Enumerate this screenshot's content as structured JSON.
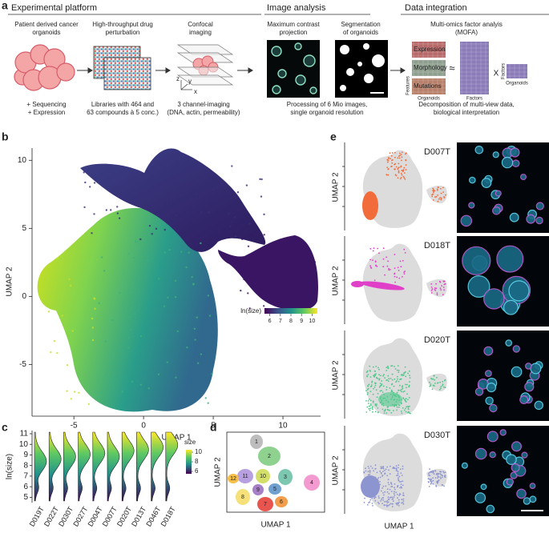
{
  "panel_a": {
    "label": "a",
    "sections": [
      "Experimental platform",
      "Image analysis",
      "Data integration"
    ],
    "steps": [
      [
        "Patient derived cancer",
        "organoids"
      ],
      [
        "High-throughput drug",
        "perturbation"
      ],
      [
        "Confocal",
        "imaging"
      ],
      [
        "Maximum contrast",
        "projection"
      ],
      [
        "Segmentation",
        "of organoids"
      ],
      [
        "Multi-omics factor analyis",
        "(MOFA)"
      ]
    ],
    "captions": [
      [
        "+ Sequencing",
        "+ Expression"
      ],
      [
        "Libraries with 464 and",
        "63 compounds à 5 conc.)"
      ],
      [
        "3 channel-imaging",
        "(DNA, actin, permeability)"
      ],
      [
        "Processing of 6 Mio images,",
        "single organoid resolution"
      ],
      [
        "Decomposition of multi-view data,",
        "biological interpretation"
      ]
    ],
    "axes": [
      "z",
      "y",
      "x"
    ],
    "mofa": {
      "views": [
        "Expression",
        "Morphology",
        "Mutations"
      ],
      "features": "Features",
      "organoids": "Organoids",
      "factors": "Factors",
      "approx": "≈",
      "times": "X"
    }
  },
  "panel_b": {
    "label": "b",
    "x_label": "UMAP 1",
    "y_label": "UMAP 2",
    "xlim": [
      -8,
      12.7
    ],
    "ylim": [
      -8.8,
      10.9
    ],
    "xticks": [
      -5,
      0,
      5,
      10
    ],
    "yticks": [
      -5,
      0,
      5,
      10
    ],
    "colorbar": {
      "title": "ln(size)",
      "lim": [
        5.5,
        10.5
      ],
      "ticks": [
        6,
        7,
        8,
        9,
        10
      ]
    }
  },
  "panel_c": {
    "label": "c",
    "y_label": "ln(size)",
    "ylim": [
      4.5,
      11.3
    ],
    "yticks": [
      5,
      6,
      7,
      8,
      9,
      10,
      11
    ],
    "categories": [
      "D019T",
      "D022T",
      "D030T",
      "D027T",
      "D004T",
      "D007T",
      "D020T",
      "D013T",
      "D046T",
      "D018T"
    ],
    "legend": {
      "title": "size",
      "lim": [
        5.5,
        10.5
      ],
      "ticks": [
        10,
        8,
        6
      ]
    }
  },
  "panel_d": {
    "label": "d",
    "x_label": "UMAP 1",
    "y_label": "UMAP 2",
    "clusters": [
      "1",
      "2",
      "3",
      "4",
      "5",
      "6",
      "7",
      "8",
      "9",
      "10",
      "11",
      "12"
    ]
  },
  "panel_e": {
    "label": "e",
    "x_label": "UMAP 1",
    "y_label": "UMAP 2",
    "samples": [
      {
        "name": "D007T",
        "color": "#f26b3a"
      },
      {
        "name": "D018T",
        "color": "#e040c8"
      },
      {
        "name": "D020T",
        "color": "#4fc88a"
      },
      {
        "name": "D030T",
        "color": "#8d95d0"
      }
    ]
  }
}
